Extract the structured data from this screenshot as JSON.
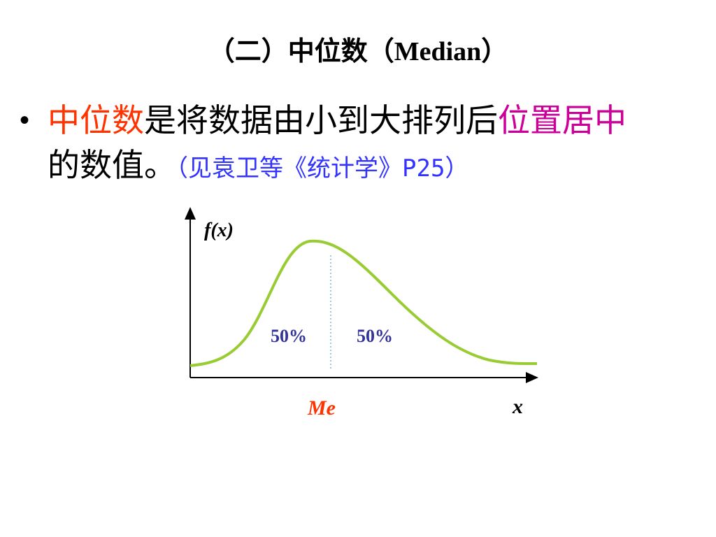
{
  "header": {
    "title_parts": [
      "（二）中位数（",
      "Median",
      "）"
    ]
  },
  "bullet": {
    "segments": [
      "中位数",
      "是将数据由小到大排列后",
      "位置居中",
      "的数值。",
      "（见袁卫等《统计学》P25）"
    ]
  },
  "diagram": {
    "y_label": "f(x)",
    "left_share": "50%",
    "right_share": "50%",
    "median_label": "Me",
    "x_label": "x"
  }
}
